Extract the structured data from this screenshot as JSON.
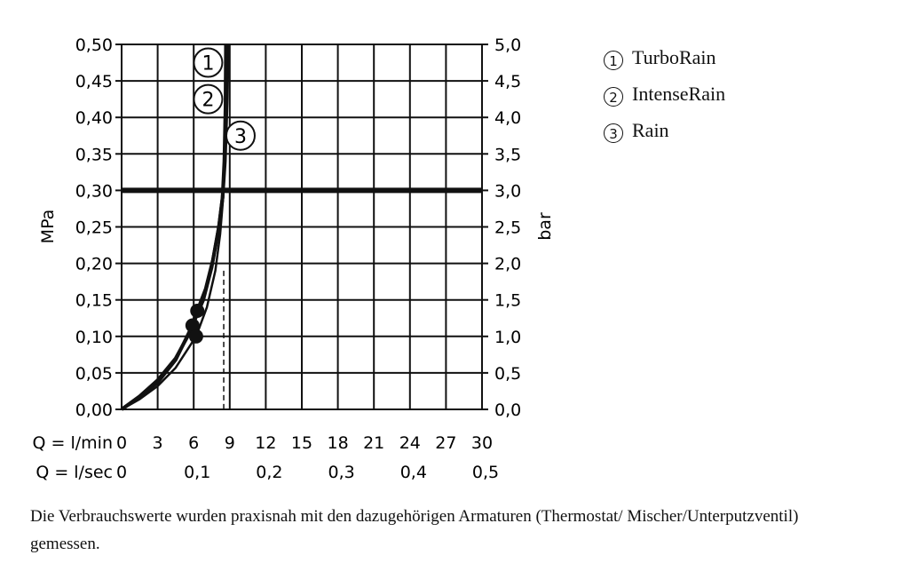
{
  "chart_data": {
    "type": "line",
    "xlabel_primary": "Q = l/min",
    "xlabel_secondary": "Q = l/sec",
    "ylabel_left": "MPa",
    "ylabel_right": "bar",
    "xlim": [
      0,
      30
    ],
    "ylim": [
      0,
      0.5
    ],
    "x_ticks": [
      "0",
      "3",
      "6",
      "9",
      "12",
      "15",
      "18",
      "21",
      "24",
      "27",
      "30"
    ],
    "x_ticks_secondary": [
      "0",
      "0,1",
      "0,2",
      "0,3",
      "0,4",
      "0,5"
    ],
    "y_ticks_left": [
      "0,00",
      "0,05",
      "0,10",
      "0,15",
      "0,20",
      "0,25",
      "0,30",
      "0,35",
      "0,40",
      "0,45",
      "0,50"
    ],
    "y_ticks_right": [
      "0,0",
      "0,5",
      "1,0",
      "1,5",
      "2,0",
      "2,5",
      "3,0",
      "3,5",
      "4,0",
      "4,5",
      "5,0"
    ],
    "grid": true,
    "reference_line_y": 0.3,
    "reference_line_x_dashed": 8.5,
    "series": [
      {
        "name": "TurboRain",
        "marker_label": "1",
        "points": [
          [
            0,
            0
          ],
          [
            1.5,
            0.018
          ],
          [
            3,
            0.04
          ],
          [
            4.5,
            0.07
          ],
          [
            5.5,
            0.1
          ],
          [
            6.3,
            0.135
          ],
          [
            7,
            0.165
          ],
          [
            7.6,
            0.205
          ],
          [
            8.1,
            0.25
          ],
          [
            8.4,
            0.29
          ],
          [
            8.6,
            0.34
          ],
          [
            8.75,
            0.42
          ],
          [
            8.85,
            0.5
          ]
        ],
        "dot": [
          6.3,
          0.135
        ],
        "marker_pos": [
          7.2,
          0.475
        ]
      },
      {
        "name": "IntenseRain",
        "marker_label": "2",
        "points": [
          [
            0,
            0
          ],
          [
            1.5,
            0.017
          ],
          [
            3,
            0.037
          ],
          [
            4.5,
            0.068
          ],
          [
            5.9,
            0.115
          ],
          [
            6.8,
            0.15
          ],
          [
            7.5,
            0.195
          ],
          [
            8.1,
            0.25
          ],
          [
            8.4,
            0.29
          ],
          [
            8.55,
            0.34
          ],
          [
            8.65,
            0.42
          ],
          [
            8.7,
            0.5
          ]
        ],
        "dot": [
          5.9,
          0.115
        ],
        "marker_pos": [
          7.2,
          0.425
        ]
      },
      {
        "name": "Rain",
        "marker_label": "3",
        "points": [
          [
            0,
            0
          ],
          [
            1.5,
            0.014
          ],
          [
            3,
            0.032
          ],
          [
            4.5,
            0.057
          ],
          [
            6.2,
            0.1
          ],
          [
            7.1,
            0.14
          ],
          [
            7.8,
            0.19
          ],
          [
            8.2,
            0.24
          ],
          [
            8.45,
            0.29
          ],
          [
            8.55,
            0.34
          ],
          [
            8.6,
            0.42
          ],
          [
            8.62,
            0.5
          ]
        ],
        "dot": [
          6.2,
          0.1
        ],
        "marker_pos": [
          9.9,
          0.375
        ]
      }
    ]
  },
  "legend": [
    {
      "symbol": "1",
      "label": "TurboRain"
    },
    {
      "symbol": "2",
      "label": "IntenseRain"
    },
    {
      "symbol": "3",
      "label": "Rain"
    }
  ],
  "note": "Die Verbrauchswerte wurden praxisnah mit den dazugehörigen Armaturen (Thermostat/ Mischer/Unterputzventil) gemessen."
}
